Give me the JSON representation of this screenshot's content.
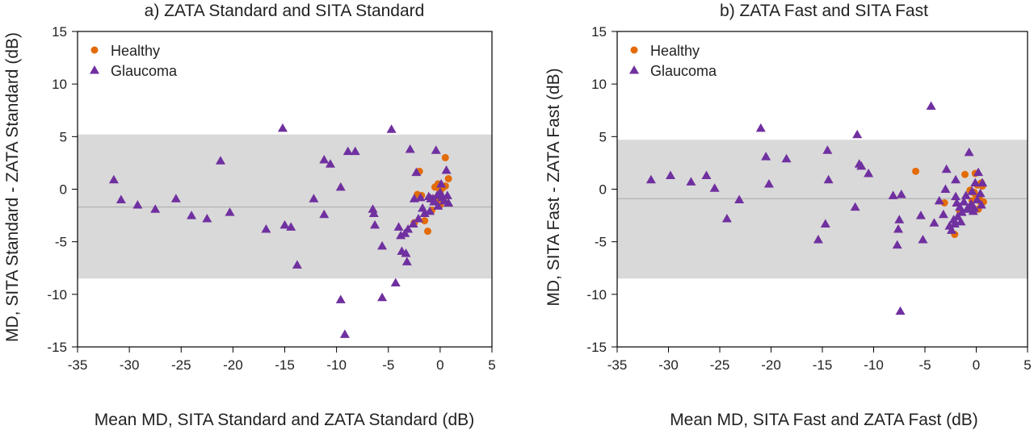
{
  "colors": {
    "healthy": "#e36c09",
    "glaucoma": "#7030a0",
    "band": "#d9d9d9",
    "meanline": "#aaaaaa",
    "axis": "#000000"
  },
  "chart_data": [
    {
      "type": "scatter",
      "title": "a) ZATA Standard and SITA Standard",
      "xlabel": "Mean MD, SITA Standard and ZATA Standard (dB)",
      "ylabel": "MD, SITA Standard - ZATA Standard (dB)",
      "xlim": [
        -35,
        5
      ],
      "ylim": [
        -15,
        15
      ],
      "xticks": [
        -35,
        -30,
        -25,
        -20,
        -15,
        -10,
        -5,
        0,
        5
      ],
      "yticks": [
        -15,
        -10,
        -5,
        0,
        5,
        10,
        15
      ],
      "legend_position": "top-left",
      "grid": false,
      "limits_of_agreement": [
        -8.5,
        5.2
      ],
      "mean_difference": -1.7,
      "series": [
        {
          "name": "Healthy",
          "marker": "circle",
          "color_key": "healthy",
          "points": [
            [
              -2,
              1.7
            ],
            [
              -2.2,
              -0.5
            ],
            [
              -1.8,
              -0.6
            ],
            [
              -1.5,
              -3
            ],
            [
              -1.2,
              -4
            ],
            [
              -0.5,
              0.2
            ],
            [
              -0.2,
              0.5
            ],
            [
              0,
              -0.2
            ],
            [
              0.2,
              0.1
            ],
            [
              0.5,
              3
            ],
            [
              0.8,
              1
            ],
            [
              0.3,
              -1
            ],
            [
              -0.8,
              -2
            ],
            [
              0,
              -1.5
            ],
            [
              0.5,
              0.3
            ],
            [
              -0.3,
              -1.2
            ],
            [
              -0.6,
              -0.9
            ],
            [
              -2.5,
              -3.2
            ]
          ]
        },
        {
          "name": "Glaucoma",
          "marker": "triangle",
          "color_key": "glaucoma",
          "points": [
            [
              -31.5,
              0.9
            ],
            [
              -30.8,
              -1
            ],
            [
              -29.2,
              -1.5
            ],
            [
              -27.5,
              -1.9
            ],
            [
              -25.5,
              -0.9
            ],
            [
              -24,
              -2.5
            ],
            [
              -22.5,
              -2.8
            ],
            [
              -21.2,
              2.7
            ],
            [
              -20.3,
              -2.2
            ],
            [
              -16.8,
              -3.8
            ],
            [
              -15.2,
              5.8
            ],
            [
              -15,
              -3.4
            ],
            [
              -14.4,
              -3.6
            ],
            [
              -13.8,
              -7.2
            ],
            [
              -12.2,
              -0.9
            ],
            [
              -11.2,
              2.8
            ],
            [
              -11.2,
              -2.4
            ],
            [
              -10.6,
              2.4
            ],
            [
              -9.6,
              0.2
            ],
            [
              -9.6,
              -10.5
            ],
            [
              -9.2,
              -13.8
            ],
            [
              -8.9,
              3.6
            ],
            [
              -8.2,
              3.6
            ],
            [
              -6.5,
              -1.9
            ],
            [
              -6.4,
              -2.3
            ],
            [
              -6.3,
              -3.4
            ],
            [
              -5.6,
              -5.4
            ],
            [
              -5.6,
              -10.3
            ],
            [
              -4.7,
              5.7
            ],
            [
              -4.3,
              -8.9
            ],
            [
              -4,
              -3.6
            ],
            [
              -3.8,
              -4.4
            ],
            [
              -3.7,
              -5.9
            ],
            [
              -3.4,
              -4.2
            ],
            [
              -3.3,
              -6.1
            ],
            [
              -3.2,
              -6.9
            ],
            [
              -3.1,
              -3.8
            ],
            [
              -2.9,
              3.8
            ],
            [
              -2.6,
              -3.3
            ],
            [
              -2.5,
              -0.9
            ],
            [
              -2.3,
              1.6
            ],
            [
              -2.1,
              -2.8
            ],
            [
              -1.9,
              -0.8
            ],
            [
              -1.7,
              -1.8
            ],
            [
              -1.5,
              -2.3
            ],
            [
              -1.1,
              -0.7
            ],
            [
              -0.9,
              -0.9
            ],
            [
              -0.7,
              -0.9
            ],
            [
              -0.6,
              -1.2
            ],
            [
              -0.4,
              3.7
            ],
            [
              -0.2,
              -1.6
            ],
            [
              0,
              -0.3
            ],
            [
              0.2,
              -0.8
            ],
            [
              0.4,
              -1.1
            ],
            [
              0.6,
              1.8
            ],
            [
              0.7,
              -0.6
            ],
            [
              -1,
              -2.1
            ],
            [
              -0.3,
              -0.6
            ],
            [
              0.1,
              0.5
            ],
            [
              0.8,
              -1.3
            ]
          ]
        }
      ]
    },
    {
      "type": "scatter",
      "title": "b) ZATA Fast and SITA Fast",
      "xlabel": "Mean MD, SITA Fast and ZATA Fast (dB)",
      "ylabel": "MD, SITA Fast - ZATA Fast (dB)",
      "xlim": [
        -35,
        5
      ],
      "ylim": [
        -15,
        15
      ],
      "xticks": [
        -35,
        -30,
        -25,
        -20,
        -15,
        -10,
        -5,
        0,
        5
      ],
      "yticks": [
        -15,
        -10,
        -5,
        0,
        5,
        10,
        15
      ],
      "legend_position": "top-left",
      "grid": false,
      "limits_of_agreement": [
        -8.5,
        4.7
      ],
      "mean_difference": -0.9,
      "series": [
        {
          "name": "Healthy",
          "marker": "circle",
          "color_key": "healthy",
          "points": [
            [
              -5.9,
              1.7
            ],
            [
              -3.1,
              -1.3
            ],
            [
              -2.1,
              -4.3
            ],
            [
              -1.6,
              -2.1
            ],
            [
              -1.1,
              1.4
            ],
            [
              -0.6,
              -0.1
            ],
            [
              -0.3,
              -0.3
            ],
            [
              -0.1,
              1.5
            ],
            [
              0,
              -0.6
            ],
            [
              0.1,
              0.4
            ],
            [
              0.3,
              -0.8
            ],
            [
              0.4,
              -1.2
            ],
            [
              0.5,
              0.6
            ],
            [
              0.6,
              0.3
            ],
            [
              0.7,
              -1.2
            ],
            [
              -0.4,
              -1.1
            ],
            [
              0.2,
              -1.9
            ],
            [
              -0.2,
              -0.3
            ]
          ]
        },
        {
          "name": "Glaucoma",
          "marker": "triangle",
          "color_key": "glaucoma",
          "points": [
            [
              -31.7,
              0.9
            ],
            [
              -29.8,
              1.3
            ],
            [
              -27.8,
              0.7
            ],
            [
              -26.3,
              1.3
            ],
            [
              -25.5,
              0.1
            ],
            [
              -24.3,
              -2.8
            ],
            [
              -23.1,
              -1
            ],
            [
              -21,
              5.8
            ],
            [
              -20.5,
              3.1
            ],
            [
              -20.2,
              0.5
            ],
            [
              -18.5,
              2.9
            ],
            [
              -15.4,
              -4.8
            ],
            [
              -14.7,
              -3.3
            ],
            [
              -14.5,
              3.7
            ],
            [
              -14.4,
              0.9
            ],
            [
              -11.8,
              -1.7
            ],
            [
              -11.6,
              5.2
            ],
            [
              -11.4,
              2.4
            ],
            [
              -11.2,
              2.2
            ],
            [
              -10.5,
              1.5
            ],
            [
              -8.1,
              -0.6
            ],
            [
              -7.7,
              -5.3
            ],
            [
              -7.6,
              -3.8
            ],
            [
              -7.5,
              -2.9
            ],
            [
              -7.4,
              -11.6
            ],
            [
              -7.3,
              -0.5
            ],
            [
              -5.4,
              -2.5
            ],
            [
              -5.2,
              -4.8
            ],
            [
              -4.4,
              7.9
            ],
            [
              -4.1,
              -3.2
            ],
            [
              -3.6,
              -1.1
            ],
            [
              -3.2,
              -2.4
            ],
            [
              -3,
              0
            ],
            [
              -2.9,
              1.9
            ],
            [
              -2.6,
              -3.5
            ],
            [
              -2.4,
              -3.9
            ],
            [
              -2.2,
              -2.9
            ],
            [
              -2.1,
              -3.3
            ],
            [
              -2,
              -0.7
            ],
            [
              -2,
              0.9
            ],
            [
              -1.9,
              -1.3
            ],
            [
              -1.8,
              -2.6
            ],
            [
              -1.6,
              -1.7
            ],
            [
              -1.5,
              -3.1
            ],
            [
              -1.4,
              -2.2
            ],
            [
              -1.2,
              -1.2
            ],
            [
              -1,
              -0.6
            ],
            [
              -0.9,
              -1.9
            ],
            [
              -0.7,
              3.5
            ],
            [
              -0.6,
              -1.6
            ],
            [
              -0.5,
              -1.4
            ],
            [
              -0.4,
              -0.2
            ],
            [
              -0.3,
              -2.1
            ],
            [
              -0.2,
              -1.8
            ],
            [
              -0.1,
              0.6
            ],
            [
              0.1,
              -1
            ],
            [
              0.2,
              1.6
            ],
            [
              0.4,
              -0.4
            ],
            [
              0.5,
              -1.5
            ],
            [
              0.6,
              0.6
            ]
          ]
        }
      ]
    }
  ]
}
